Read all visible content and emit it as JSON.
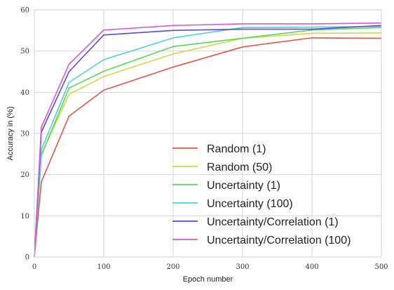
{
  "chart_data": {
    "type": "line",
    "xlabel": "Epoch number",
    "ylabel": "Accuracy in (%)",
    "xlim": [
      0,
      500
    ],
    "ylim": [
      0,
      60
    ],
    "xticks": [
      0,
      100,
      200,
      300,
      400,
      500
    ],
    "yticks": [
      0,
      10,
      20,
      30,
      40,
      50,
      60
    ],
    "grid": true,
    "legend_position": "lower-right",
    "x": [
      0,
      10,
      50,
      100,
      200,
      300,
      400,
      500
    ],
    "series": [
      {
        "name": "Random (1)",
        "color": "#d9594c",
        "values": [
          0,
          18.2,
          34.2,
          40.5,
          46.1,
          51.0,
          53.2,
          53.1
        ]
      },
      {
        "name": "Random (50)",
        "color": "#cfd74a",
        "values": [
          0,
          25.0,
          39.5,
          43.8,
          49.3,
          53.1,
          54.3,
          54.4
        ]
      },
      {
        "name": "Uncertainty (1)",
        "color": "#5fd35a",
        "values": [
          0,
          24.6,
          41.0,
          45.1,
          51.1,
          53.1,
          55.1,
          55.7
        ]
      },
      {
        "name": "Uncertainty (100)",
        "color": "#52cfd1",
        "values": [
          0,
          26.0,
          42.4,
          47.9,
          53.2,
          55.7,
          55.8,
          56.0
        ]
      },
      {
        "name": "Uncertainty/Correlation (1)",
        "color": "#5a4ccd",
        "values": [
          0,
          30.3,
          45.0,
          53.9,
          55.0,
          55.3,
          55.3,
          56.2
        ]
      },
      {
        "name": "Uncertainty/Correlation (100)",
        "color": "#d35ad3",
        "values": [
          0,
          31.5,
          46.8,
          55.1,
          56.2,
          56.6,
          56.6,
          56.8
        ]
      }
    ]
  }
}
